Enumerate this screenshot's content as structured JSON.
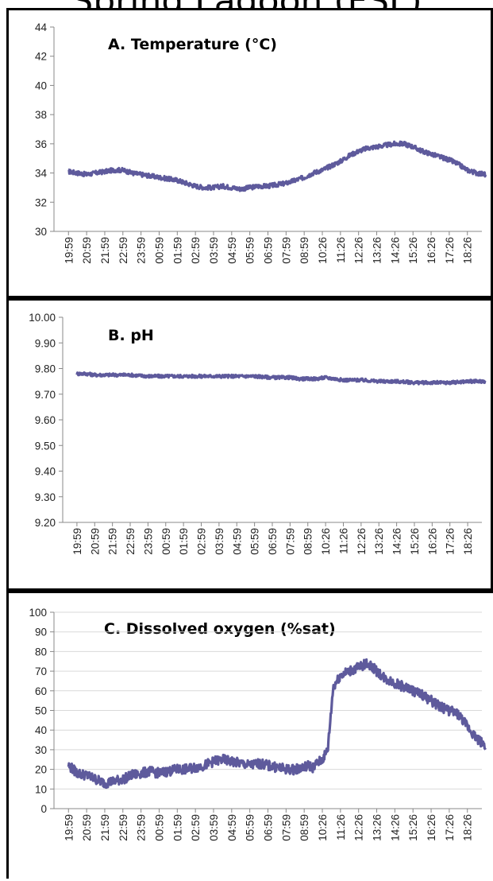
{
  "page_title": "Spring Lagoon (FSL)",
  "chart_data": [
    {
      "type": "line",
      "title": "A. Temperature (°C)",
      "xlabel": "",
      "ylabel": "",
      "ylim": [
        30,
        44
      ],
      "ytick_step": 2,
      "ytick_decimals": 0,
      "grid": false,
      "categories": [
        "19:59",
        "20:59",
        "21:59",
        "22:59",
        "23:59",
        "00:59",
        "01:59",
        "02:59",
        "03:59",
        "04:59",
        "05:59",
        "06:59",
        "07:59",
        "08:59",
        "10:26",
        "11:26",
        "12:26",
        "13:26",
        "14:26",
        "15:26",
        "16:26",
        "17:26",
        "18:26"
      ],
      "series": [
        {
          "color": "#5e5a9c",
          "x": [
            0,
            0.5,
            1,
            1.5,
            2,
            2.5,
            3,
            3.5,
            4,
            4.5,
            5,
            5.5,
            6,
            6.5,
            7,
            7.5,
            8,
            8.5,
            9,
            9.5,
            10,
            10.5,
            11,
            11.5,
            12,
            12.5,
            13,
            13.5,
            14,
            14.5,
            15,
            15.5,
            16,
            16.5,
            17,
            17.5,
            18,
            18.5,
            19,
            19.5,
            20,
            20.5,
            21,
            21.5,
            22,
            22.5,
            23
          ],
          "values": [
            34.1,
            34.0,
            33.9,
            34.0,
            34.1,
            34.2,
            34.2,
            34.0,
            33.9,
            33.8,
            33.7,
            33.6,
            33.5,
            33.3,
            33.1,
            33.0,
            33.0,
            33.1,
            33.0,
            32.9,
            33.0,
            33.1,
            33.1,
            33.2,
            33.3,
            33.5,
            33.7,
            34.0,
            34.2,
            34.5,
            34.8,
            35.2,
            35.5,
            35.7,
            35.8,
            35.9,
            36.0,
            36.0,
            35.8,
            35.5,
            35.3,
            35.1,
            34.9,
            34.6,
            34.2,
            34.0,
            33.9
          ],
          "noise": 0.15
        }
      ]
    },
    {
      "type": "line",
      "title": "B. pH",
      "xlabel": "",
      "ylabel": "",
      "ylim": [
        9.2,
        10.0
      ],
      "ytick_step": 0.1,
      "ytick_decimals": 2,
      "grid": false,
      "categories": [
        "19:59",
        "20:59",
        "21:59",
        "22:59",
        "23:59",
        "00:59",
        "01:59",
        "02:59",
        "03:59",
        "04:59",
        "05:59",
        "06:59",
        "07:59",
        "08:59",
        "10:26",
        "11:26",
        "12:26",
        "13:26",
        "14:26",
        "15:26",
        "16:26",
        "17:26",
        "18:26"
      ],
      "series": [
        {
          "color": "#5e5a9c",
          "x": [
            0,
            0.5,
            1,
            2,
            3,
            4,
            5,
            6,
            7,
            8,
            9,
            10,
            11,
            12,
            12.5,
            13,
            13.5,
            14,
            15,
            16,
            17,
            18,
            19,
            20,
            21,
            22,
            23
          ],
          "values": [
            9.78,
            9.78,
            9.775,
            9.775,
            9.775,
            9.77,
            9.77,
            9.77,
            9.77,
            9.77,
            9.77,
            9.77,
            9.765,
            9.765,
            9.76,
            9.76,
            9.76,
            9.765,
            9.755,
            9.755,
            9.75,
            9.75,
            9.745,
            9.745,
            9.745,
            9.75,
            9.75
          ],
          "noise": 0.006
        }
      ]
    },
    {
      "type": "line",
      "title": "C. Dissolved oxygen  (%sat)",
      "xlabel": "",
      "ylabel": "",
      "ylim": [
        0,
        100
      ],
      "ytick_step": 10,
      "ytick_decimals": 0,
      "grid": true,
      "categories": [
        "19:59",
        "20:59",
        "21:59",
        "22:59",
        "23:59",
        "00:59",
        "01:59",
        "02:59",
        "03:59",
        "04:59",
        "05:59",
        "06:59",
        "07:59",
        "08:59",
        "10:26",
        "11:26",
        "12:26",
        "13:26",
        "14:26",
        "15:26",
        "16:26",
        "17:26",
        "18:26"
      ],
      "series": [
        {
          "color": "#5e5a9c",
          "x": [
            0,
            0.5,
            1,
            1.5,
            2,
            2.5,
            3,
            3.5,
            4,
            4.5,
            5,
            5.5,
            6,
            6.5,
            7,
            7.5,
            8,
            8.5,
            9,
            9.5,
            10,
            10.5,
            11,
            11.5,
            12,
            12.5,
            13,
            13.2,
            13.5,
            13.7,
            14,
            14.3,
            14.6,
            15,
            15.5,
            16,
            16.5,
            17,
            17.5,
            18,
            18.5,
            19,
            19.5,
            20,
            20.5,
            21,
            21.5,
            22,
            22.5,
            23
          ],
          "values": [
            22,
            18,
            17,
            15,
            13,
            14,
            15,
            17,
            18,
            19,
            18,
            19,
            20,
            20,
            21,
            22,
            24,
            25,
            24,
            23,
            22,
            23,
            22,
            21,
            20,
            20,
            21,
            22,
            21,
            23,
            25,
            30,
            62,
            68,
            70,
            72,
            74,
            70,
            66,
            64,
            62,
            60,
            58,
            55,
            52,
            50,
            48,
            42,
            36,
            32
          ],
          "noise": 2.5
        }
      ]
    }
  ]
}
